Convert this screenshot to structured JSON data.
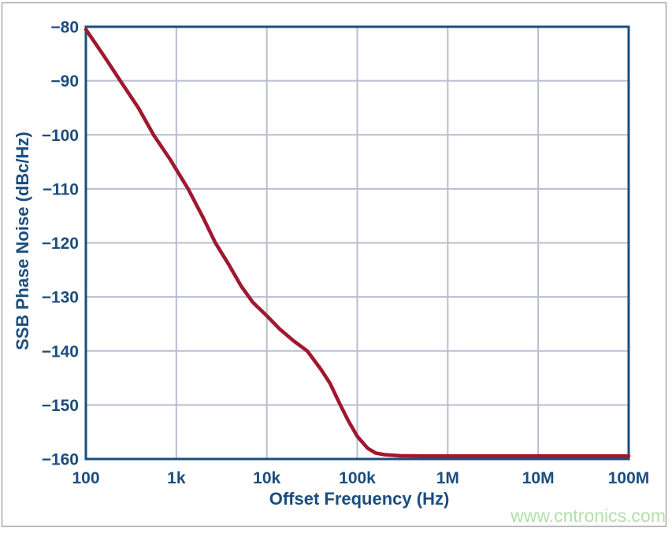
{
  "colors": {
    "navy": "#1b4d7e",
    "curve": "#a0182f",
    "grid": "#b9bdd2",
    "frame": "#a9a9a9",
    "watermark_green": "#b2dfa8",
    "background": "#ffffff"
  },
  "watermark": {
    "text": "www.cntronics.com"
  },
  "chart_data": {
    "type": "line",
    "title": "",
    "xlabel": "Offset Frequency (Hz)",
    "ylabel": "SSB Phase Noise (dBc/Hz)",
    "x_scale": "log",
    "xlim": [
      100,
      100000000
    ],
    "ylim": [
      -160,
      -80
    ],
    "grid": true,
    "legend": false,
    "x_ticks": [
      {
        "value": 100,
        "label": "100"
      },
      {
        "value": 1000,
        "label": "1k"
      },
      {
        "value": 10000,
        "label": "10k"
      },
      {
        "value": 100000,
        "label": "100k"
      },
      {
        "value": 1000000,
        "label": "1M"
      },
      {
        "value": 10000000,
        "label": "10M"
      },
      {
        "value": 100000000,
        "label": "100M"
      }
    ],
    "y_ticks": [
      {
        "value": -80,
        "label": "−80"
      },
      {
        "value": -90,
        "label": "−90"
      },
      {
        "value": -100,
        "label": "−100"
      },
      {
        "value": -110,
        "label": "−110"
      },
      {
        "value": -120,
        "label": "−120"
      },
      {
        "value": -130,
        "label": "−130"
      },
      {
        "value": -140,
        "label": "−140"
      },
      {
        "value": -150,
        "label": "−150"
      },
      {
        "value": -160,
        "label": "−160"
      }
    ],
    "series": [
      {
        "name": "SSB phase noise",
        "color": "#a0182f",
        "points": [
          [
            100,
            -80.5
          ],
          [
            160,
            -85.5
          ],
          [
            240,
            -90
          ],
          [
            380,
            -95
          ],
          [
            560,
            -100
          ],
          [
            850,
            -104.5
          ],
          [
            1350,
            -110
          ],
          [
            2000,
            -115.5
          ],
          [
            2700,
            -120
          ],
          [
            3800,
            -124
          ],
          [
            5200,
            -128
          ],
          [
            7000,
            -131
          ],
          [
            10000,
            -133.5
          ],
          [
            14000,
            -136
          ],
          [
            20000,
            -138.2
          ],
          [
            28000,
            -140
          ],
          [
            40000,
            -143.5
          ],
          [
            50000,
            -146
          ],
          [
            65000,
            -150
          ],
          [
            80000,
            -153
          ],
          [
            100000,
            -155.8
          ],
          [
            130000,
            -158
          ],
          [
            160000,
            -158.9
          ],
          [
            200000,
            -159.2
          ],
          [
            300000,
            -159.4
          ],
          [
            500000,
            -159.45
          ],
          [
            1000000,
            -159.45
          ],
          [
            3000000,
            -159.45
          ],
          [
            10000000,
            -159.45
          ],
          [
            30000000,
            -159.45
          ],
          [
            100000000,
            -159.45
          ]
        ]
      }
    ]
  }
}
